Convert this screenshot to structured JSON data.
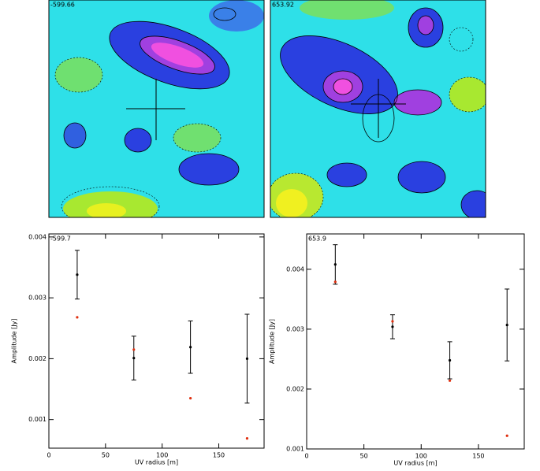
{
  "chart_data": [
    {
      "type": "image",
      "title": "-599.66"
    },
    {
      "type": "image",
      "title": "653.92"
    },
    {
      "type": "scatter",
      "title": "-599.7",
      "xlabel": "UV radius [m]",
      "ylabel": "Amplitude [Jy]",
      "xlim": [
        0,
        190
      ],
      "xticks": [
        0,
        50,
        100,
        150
      ],
      "ylim": [
        0.00053,
        0.00405
      ],
      "yticks": [
        0.001,
        0.002,
        0.003,
        0.004
      ],
      "x": [
        25,
        75,
        125,
        175
      ],
      "series": [
        {
          "color": "#000000",
          "values": [
            0.00338,
            0.00201,
            0.00219,
            0.002
          ],
          "errors": [
            0.0004,
            0.00036,
            0.00043,
            0.00073
          ]
        },
        {
          "color": "#e03010",
          "values": [
            0.00268,
            0.00215,
            0.00135,
            0.00069
          ]
        }
      ]
    },
    {
      "type": "scatter",
      "title": "653.9",
      "xlabel": "UV radius [m]",
      "ylabel": "Amplitude [Jy]",
      "xlim": [
        0,
        190
      ],
      "xticks": [
        0,
        50,
        100,
        150
      ],
      "ylim": [
        0.001,
        0.00459
      ],
      "yticks": [
        0.001,
        0.002,
        0.003,
        0.004
      ],
      "x": [
        25,
        75,
        125,
        175
      ],
      "series": [
        {
          "color": "#000000",
          "values": [
            0.00408,
            0.00304,
            0.00248,
            0.00307
          ],
          "errors": [
            0.00033,
            0.0002,
            0.00031,
            0.0006
          ]
        },
        {
          "color": "#e03010",
          "values": [
            0.00379,
            0.00313,
            0.00214,
            0.00122
          ]
        }
      ]
    }
  ]
}
